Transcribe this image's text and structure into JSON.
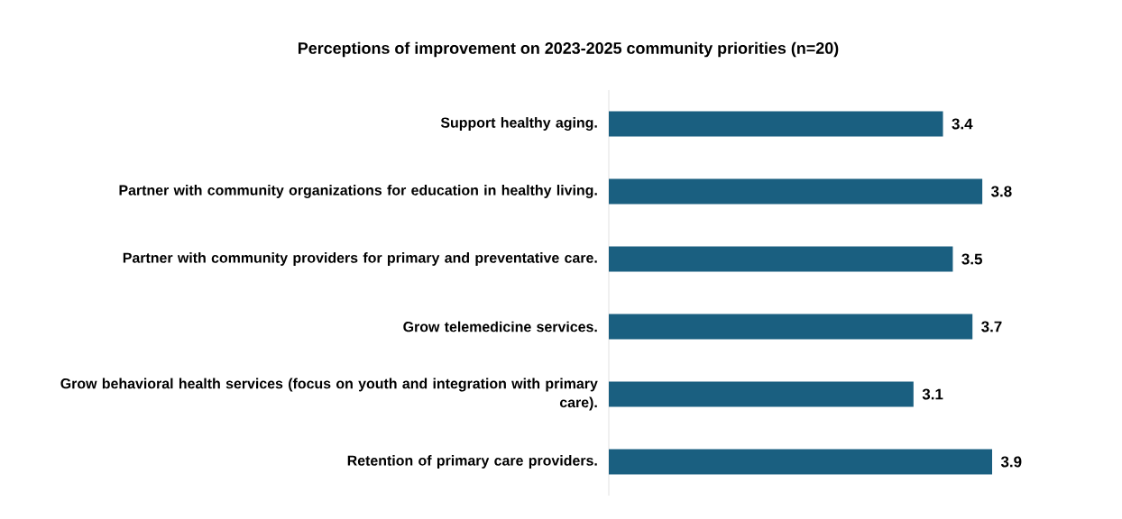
{
  "chart_data": {
    "type": "bar",
    "orientation": "horizontal",
    "title": "Perceptions of improvement on 2023-2025 community priorities (n=20)",
    "categories": [
      "Support healthy aging.",
      "Partner with community organizations for education in healthy living.",
      "Partner with community providers for primary and preventative care.",
      "Grow telemedicine services.",
      "Grow behavioral health services (focus on youth and integration with primary care).",
      "Retention of primary care providers."
    ],
    "values": [
      3.4,
      3.8,
      3.5,
      3.7,
      3.1,
      3.9
    ],
    "color": "#1a5f80",
    "tick_labels": "y",
    "data_labels": true
  }
}
